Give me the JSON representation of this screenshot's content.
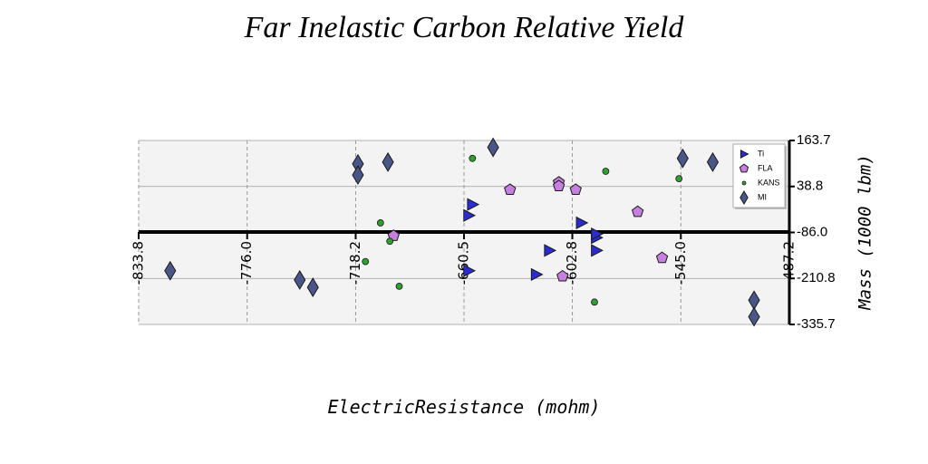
{
  "chart_data": {
    "type": "scatter",
    "title": "Far Inelastic Carbon Relative Yield",
    "xlabel": "ElectricResistance (mohm)",
    "ylabel": "Mass (1000 lbm)",
    "xlim": [
      -833.8,
      -487.2
    ],
    "ylim": [
      -335.7,
      163.7
    ],
    "x_ticks": [
      "-833.8",
      "-776.0",
      "-718.2",
      "-660.5",
      "-602.8",
      "-545.0",
      "-487.2"
    ],
    "y_ticks": [
      "163.7",
      "38.8",
      "-86.0",
      "-210.8",
      "-335.7"
    ],
    "grid": true,
    "legend_position": "top-right",
    "series": [
      {
        "name": "Ti",
        "marker": "triangle-right",
        "color": "#2b2bd0",
        "points": [
          {
            "x": -656,
            "y": -10
          },
          {
            "x": -658,
            "y": -40
          },
          {
            "x": -658,
            "y": -190
          },
          {
            "x": -622,
            "y": -200
          },
          {
            "x": -615,
            "y": -135
          },
          {
            "x": -598,
            "y": -60
          },
          {
            "x": -590,
            "y": -100
          },
          {
            "x": -590,
            "y": -90
          },
          {
            "x": -590,
            "y": -135
          }
        ]
      },
      {
        "name": "FLA",
        "marker": "pentagon",
        "color": "#c77fe0",
        "points": [
          {
            "x": -698,
            "y": -95
          },
          {
            "x": -636,
            "y": 30
          },
          {
            "x": -610,
            "y": 50
          },
          {
            "x": -610,
            "y": 40
          },
          {
            "x": -608,
            "y": -205
          },
          {
            "x": -601,
            "y": 30
          },
          {
            "x": -568,
            "y": -30
          },
          {
            "x": -555,
            "y": -155
          }
        ]
      },
      {
        "name": "KANS",
        "marker": "circle",
        "color": "#2ea02e",
        "points": [
          {
            "x": -705,
            "y": -60
          },
          {
            "x": -700,
            "y": -110
          },
          {
            "x": -713,
            "y": -165
          },
          {
            "x": -695,
            "y": -232
          },
          {
            "x": -656,
            "y": 115
          },
          {
            "x": -585,
            "y": 80
          },
          {
            "x": -591,
            "y": -275
          },
          {
            "x": -546,
            "y": 60
          }
        ]
      },
      {
        "name": "MI",
        "marker": "diamond",
        "color": "#4a5688",
        "points": [
          {
            "x": -817,
            "y": -190
          },
          {
            "x": -748,
            "y": -215
          },
          {
            "x": -741,
            "y": -235
          },
          {
            "x": -717,
            "y": 100
          },
          {
            "x": -717,
            "y": 70
          },
          {
            "x": -701,
            "y": 105
          },
          {
            "x": -645,
            "y": 145
          },
          {
            "x": -544,
            "y": 115
          },
          {
            "x": -528,
            "y": 105
          },
          {
            "x": -506,
            "y": -270
          },
          {
            "x": -506,
            "y": -315
          }
        ]
      }
    ]
  }
}
